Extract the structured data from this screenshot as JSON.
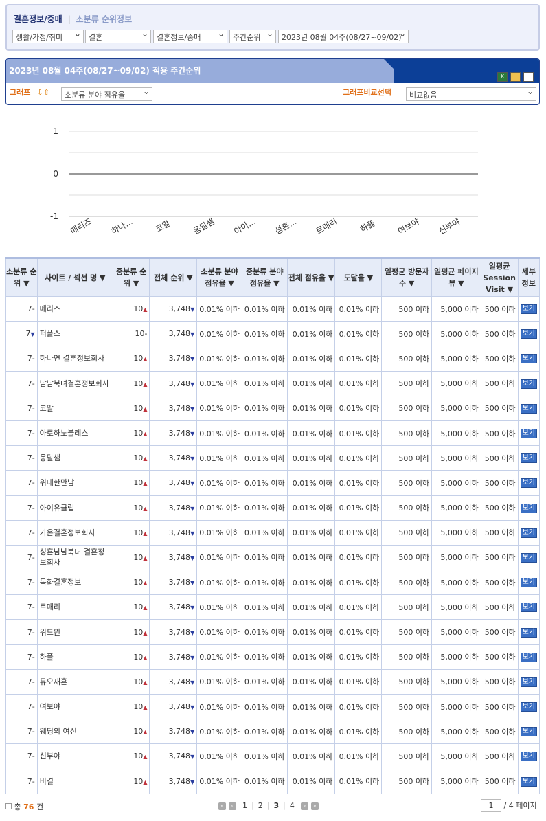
{
  "breadcrumb": {
    "main": "결혼정보/중매",
    "sub": "소분류 순위정보"
  },
  "filters": [
    "생활/가정/취미",
    "결혼",
    "결혼정보/중매",
    "주간순위",
    "2023년 08월 04주(08/27~09/02)"
  ],
  "panel": {
    "title": "2023년 08월 04주(08/27~09/02) 적용 주간순위",
    "graph_label": "그래프",
    "graph_select": "소분류 분야 점유율",
    "compare_label": "그래프비교선택",
    "compare_select": "비교없음"
  },
  "chart_data": {
    "type": "line",
    "categories": [
      "메리즈",
      "하나...",
      "코말",
      "옹달샘",
      "아이...",
      "성혼...",
      "르매리",
      "하플",
      "여보야",
      "신부야"
    ],
    "values": [
      0,
      0,
      0,
      0,
      0,
      0,
      0,
      0,
      0,
      0
    ],
    "ylim": [
      -1,
      1
    ],
    "yticks": [
      "1",
      "0",
      "-1"
    ],
    "grid": true
  },
  "table": {
    "headers": [
      "소분류 순위 ▼",
      "사이트 / 섹션 명 ▼",
      "중분류 순위 ▼",
      "전체 순위 ▼",
      "소분류 분야 점유율 ▼",
      "중분류 분야 점유율 ▼",
      "전체 점유율 ▼",
      "도달율 ▼",
      "일평균 방문자 수 ▼",
      "일평균 페이지 뷰 ▼",
      "일평균 Session Visit ▼",
      "세부 정보"
    ],
    "rows": [
      [
        "7",
        "-",
        "메리즈",
        "10",
        "up"
      ],
      [
        "7",
        "down",
        "퍼플스",
        "10",
        "-"
      ],
      [
        "7",
        "-",
        "하나연 결혼정보회사",
        "10",
        "up"
      ],
      [
        "7",
        "-",
        "남남북녀결혼정보회사",
        "10",
        "up"
      ],
      [
        "7",
        "-",
        "코말",
        "10",
        "up"
      ],
      [
        "7",
        "-",
        "아로하노블레스",
        "10",
        "up"
      ],
      [
        "7",
        "-",
        "옹달샘",
        "10",
        "up"
      ],
      [
        "7",
        "-",
        "위대한만남",
        "10",
        "up"
      ],
      [
        "7",
        "-",
        "아이유클럽",
        "10",
        "up"
      ],
      [
        "7",
        "-",
        "가온결혼정보회사",
        "10",
        "up"
      ],
      [
        "7",
        "-",
        "성혼남남북녀 결혼정보회사",
        "10",
        "up"
      ],
      [
        "7",
        "-",
        "목화결혼정보",
        "10",
        "up"
      ],
      [
        "7",
        "-",
        "르매리",
        "10",
        "up"
      ],
      [
        "7",
        "-",
        "위드원",
        "10",
        "up"
      ],
      [
        "7",
        "-",
        "하플",
        "10",
        "up"
      ],
      [
        "7",
        "-",
        "듀오재혼",
        "10",
        "up"
      ],
      [
        "7",
        "-",
        "여보야",
        "10",
        "up"
      ],
      [
        "7",
        "-",
        "웨딩의 여신",
        "10",
        "up"
      ],
      [
        "7",
        "-",
        "신부야",
        "10",
        "up"
      ],
      [
        "7",
        "-",
        "비결",
        "10",
        "up"
      ]
    ],
    "common": {
      "total_rank": "3,748",
      "share1": "0.01% 이하",
      "share2": "0.01% 이하",
      "share3": "0.01% 이하",
      "reach": "0.01% 이하",
      "visitors": "500 이하",
      "pageviews": "5,000 이하",
      "sessions": "500 이하",
      "detail": "보기"
    }
  },
  "footer": {
    "total_prefix": "총",
    "total": "76",
    "total_suffix": "건",
    "pages": [
      "1",
      "2",
      "3",
      "4"
    ],
    "current_page": "3",
    "page_input": "1",
    "page_total": "/ 4 페이지"
  }
}
